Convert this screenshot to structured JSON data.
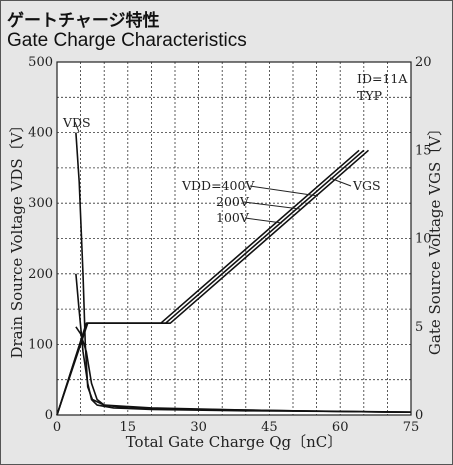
{
  "header": {
    "title_jp": "ゲートチャージ特性",
    "title_en": "Gate Charge Characteristics"
  },
  "chart_data": {
    "type": "line",
    "title": "Gate Charge Characteristics",
    "xlabel": "Total Gate Charge  Qg〔nC〕",
    "ylabel_left": "Drain Source Voltage VDS〔V〕",
    "ylabel_right": "Gate Source Voltage VGS〔V〕",
    "xlim": [
      0,
      75
    ],
    "ylim_left": [
      0,
      500
    ],
    "ylim_right": [
      0,
      20
    ],
    "x_ticks": [
      0,
      15,
      30,
      45,
      60,
      75
    ],
    "y_ticks_left": [
      0,
      100,
      200,
      300,
      400,
      500
    ],
    "y_ticks_right": [
      0,
      5,
      10,
      15,
      20
    ],
    "grid": true,
    "conditions": [
      "ID=11A",
      "TYP"
    ],
    "curve_labels": {
      "vds": "VDS",
      "vgs": "VGS",
      "vdd_400": "VDD=400V",
      "vdd_200": "200V",
      "vdd_100": "100V"
    },
    "series": [
      {
        "name": "VGS (VDD=400V)",
        "axis": "right",
        "x": [
          0,
          6.5,
          24,
          66
        ],
        "y": [
          0,
          5.2,
          5.2,
          15.0
        ]
      },
      {
        "name": "VGS (VDD=200V)",
        "axis": "right",
        "x": [
          0,
          6.3,
          23,
          65
        ],
        "y": [
          0,
          5.2,
          5.2,
          15.0
        ]
      },
      {
        "name": "VGS (VDD=100V)",
        "axis": "right",
        "x": [
          0,
          6.2,
          22,
          64
        ],
        "y": [
          0,
          5.2,
          5.2,
          15.0
        ]
      },
      {
        "name": "VDS (VDD=400V)",
        "axis": "left",
        "x": [
          4,
          4.7,
          5.5,
          6.0,
          6.5,
          7.5,
          10,
          20,
          40,
          60,
          75
        ],
        "y": [
          400,
          330,
          200,
          100,
          40,
          22,
          14,
          10,
          7,
          5,
          4
        ]
      },
      {
        "name": "VDS (VDD=200V)",
        "axis": "left",
        "x": [
          4,
          4.6,
          5.5,
          6.5,
          7.3,
          8.5,
          12,
          20,
          40,
          60,
          75
        ],
        "y": [
          200,
          155,
          90,
          45,
          22,
          14,
          10,
          8,
          6,
          5,
          4
        ]
      },
      {
        "name": "VDS (VDD=100V)",
        "axis": "left",
        "x": [
          4,
          5,
          6.2,
          7.3,
          8.5,
          10,
          15,
          30,
          50,
          75
        ],
        "y": [
          125,
          115,
          90,
          45,
          22,
          14,
          10,
          8,
          6,
          4
        ]
      }
    ]
  }
}
